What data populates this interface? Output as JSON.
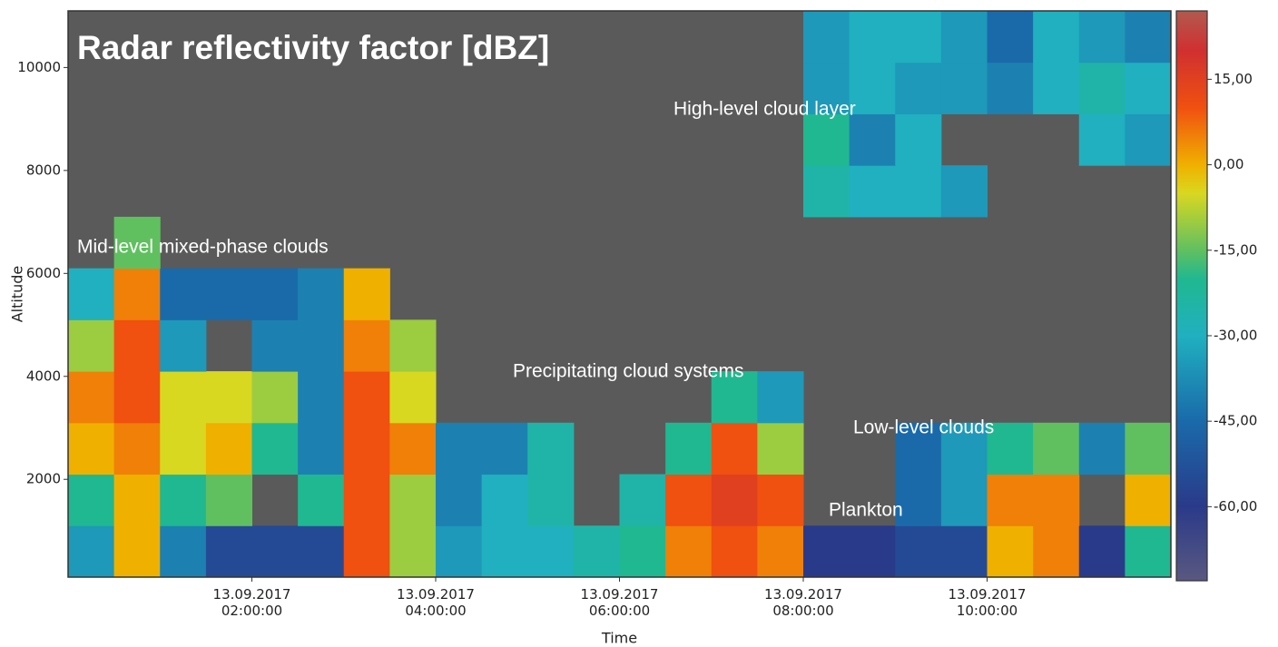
{
  "chart_data": {
    "type": "heatmap",
    "title": "Radar reflectivity factor [dBZ]",
    "x_label": "Time",
    "y_label": "Altitude",
    "xlim": [
      0,
      12
    ],
    "xticks": [
      {
        "value": 2,
        "label": "13.09.2017\n02:00:00"
      },
      {
        "value": 4,
        "label": "13.09.2017\n04:00:00"
      },
      {
        "value": 6,
        "label": "13.09.2017\n06:00:00"
      },
      {
        "value": 8,
        "label": "13.09.2017\n08:00:00"
      },
      {
        "value": 10,
        "label": "13.09.2017\n10:00:00"
      }
    ],
    "ylim": [
      100,
      11100
    ],
    "yticks": [
      2000,
      4000,
      6000,
      8000,
      10000
    ],
    "x_bins": [
      0,
      0.5,
      1,
      1.5,
      2,
      2.5,
      3,
      3.5,
      4,
      4.5,
      5,
      5.5,
      6,
      6.5,
      7,
      7.5,
      8,
      8.5,
      9,
      9.5,
      10,
      10.5,
      11,
      11.5,
      12
    ],
    "y_bins": [
      100,
      1100,
      2100,
      3100,
      4100,
      5100,
      6100,
      7100,
      8100,
      9100,
      10100,
      11100
    ],
    "z": [
      [
        -35,
        0,
        -40,
        -55,
        -55,
        -55,
        10,
        -10,
        -35,
        -30,
        -30,
        -25,
        -20,
        5,
        10,
        5,
        -60,
        -60,
        -55,
        -55,
        0,
        5,
        -60,
        -20
      ],
      [
        -20,
        0,
        -20,
        -15,
        null,
        -20,
        10,
        -10,
        -40,
        -30,
        -25,
        null,
        -25,
        10,
        15,
        10,
        null,
        null,
        -45,
        -35,
        5,
        5,
        null,
        0
      ],
      [
        0,
        5,
        -5,
        0,
        -20,
        -40,
        10,
        5,
        -40,
        -40,
        -25,
        null,
        null,
        -20,
        10,
        -10,
        null,
        null,
        -45,
        -35,
        -20,
        -15,
        -40,
        -15
      ],
      [
        5,
        10,
        -5,
        -5,
        -10,
        -40,
        10,
        -5,
        null,
        null,
        null,
        null,
        null,
        null,
        -20,
        -35,
        null,
        null,
        null,
        null,
        null,
        null,
        null,
        null
      ],
      [
        -10,
        10,
        -35,
        null,
        -40,
        -40,
        5,
        -10,
        null,
        null,
        null,
        null,
        null,
        null,
        null,
        null,
        null,
        null,
        null,
        null,
        null,
        null,
        null,
        null
      ],
      [
        -30,
        5,
        -45,
        -45,
        -45,
        -40,
        0,
        null,
        null,
        null,
        null,
        null,
        null,
        null,
        null,
        null,
        null,
        null,
        null,
        null,
        null,
        null,
        null,
        null
      ],
      [
        null,
        -15,
        null,
        null,
        null,
        null,
        null,
        null,
        null,
        null,
        null,
        null,
        null,
        null,
        null,
        null,
        null,
        null,
        null,
        null,
        null,
        null,
        null,
        null
      ],
      [
        null,
        null,
        null,
        null,
        null,
        null,
        null,
        null,
        null,
        null,
        null,
        null,
        null,
        null,
        null,
        null,
        -25,
        -30,
        -30,
        -35,
        null,
        null,
        null,
        null
      ],
      [
        null,
        null,
        null,
        null,
        null,
        null,
        null,
        null,
        null,
        null,
        null,
        null,
        null,
        null,
        null,
        null,
        -20,
        -40,
        -30,
        null,
        null,
        null,
        -30,
        -35
      ],
      [
        null,
        null,
        null,
        null,
        null,
        null,
        null,
        null,
        null,
        null,
        null,
        null,
        null,
        null,
        null,
        null,
        -35,
        -30,
        -35,
        -35,
        -40,
        -30,
        -25,
        -30
      ],
      [
        null,
        null,
        null,
        null,
        null,
        null,
        null,
        null,
        null,
        null,
        null,
        null,
        null,
        null,
        null,
        null,
        -35,
        -30,
        -30,
        -35,
        -45,
        -30,
        -35,
        -40
      ]
    ],
    "background": "#5a5a5a",
    "clim": [
      -73,
      27
    ],
    "colorscale": [
      {
        "value": -73,
        "color": "#5a5880"
      },
      {
        "value": -60,
        "color": "#2a3a8a"
      },
      {
        "value": -45,
        "color": "#1a6aaa"
      },
      {
        "value": -30,
        "color": "#20b0c0"
      },
      {
        "value": -20,
        "color": "#20b890"
      },
      {
        "value": -15,
        "color": "#60c060"
      },
      {
        "value": -5,
        "color": "#d8d820"
      },
      {
        "value": 0,
        "color": "#f0b000"
      },
      {
        "value": 10,
        "color": "#f05010"
      },
      {
        "value": 20,
        "color": "#d03030"
      },
      {
        "value": 27,
        "color": "#b05a50"
      }
    ],
    "cticks": [
      {
        "value": 15,
        "label": "15,00"
      },
      {
        "value": 0,
        "label": "0,00"
      },
      {
        "value": -15,
        "label": "-15,00"
      },
      {
        "value": -30,
        "label": "-30,00"
      },
      {
        "value": -45,
        "label": "-45,00"
      },
      {
        "value": -60,
        "label": "-60,00"
      }
    ],
    "annotations": [
      "Mid-level mixed-phase clouds",
      "High-level cloud layer",
      "Precipitating cloud systems",
      "Low-level clouds",
      "Plankton"
    ]
  }
}
